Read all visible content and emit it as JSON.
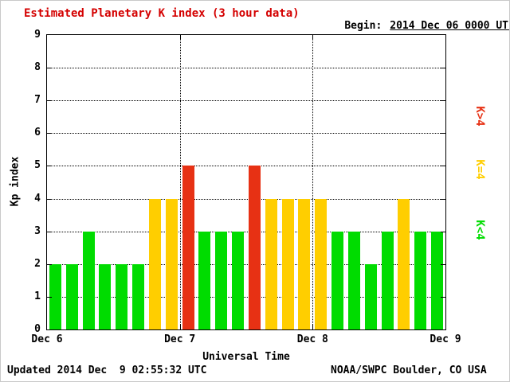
{
  "header": {
    "title": "Estimated Planetary K index (3 hour data)",
    "begin_label": "Begin:",
    "begin_value": "2014 Dec 06 0000 UTC"
  },
  "footer": {
    "updated": "Updated 2014 Dec  9 02:55:32 UTC",
    "source": "NOAA/SWPC Boulder, CO USA"
  },
  "chart_data": {
    "type": "bar",
    "title": "Estimated Planetary K index (3 hour data)",
    "xlabel": "Universal Time",
    "ylabel": "Kp index",
    "ylim": [
      0,
      9
    ],
    "yticks": [
      0,
      1,
      2,
      3,
      4,
      5,
      6,
      7,
      8,
      9
    ],
    "xticklabels": [
      "Dec 6",
      "Dec 7",
      "Dec 8",
      "Dec 9"
    ],
    "bars_per_day": 8,
    "interval_hours": 3,
    "grid": "dotted horizontal lines at each integer Kp, dotted vertical lines at day boundaries",
    "values": [
      2,
      2,
      3,
      2,
      2,
      2,
      4,
      4,
      5,
      3,
      3,
      3,
      5,
      4,
      4,
      4,
      4,
      3,
      3,
      2,
      3,
      4,
      3,
      3
    ],
    "colors": {
      "low": "#00dc00",
      "mid": "#ffce00",
      "high": "#e73114"
    },
    "color_rule": "green K<4, yellow K=4, red K>4",
    "title_color": "#d40000"
  },
  "legend": {
    "items": [
      {
        "label": "K>4",
        "color": "#e73114"
      },
      {
        "label": "K=4",
        "color": "#ffce00"
      },
      {
        "label": "K<4",
        "color": "#00dc00"
      }
    ]
  }
}
